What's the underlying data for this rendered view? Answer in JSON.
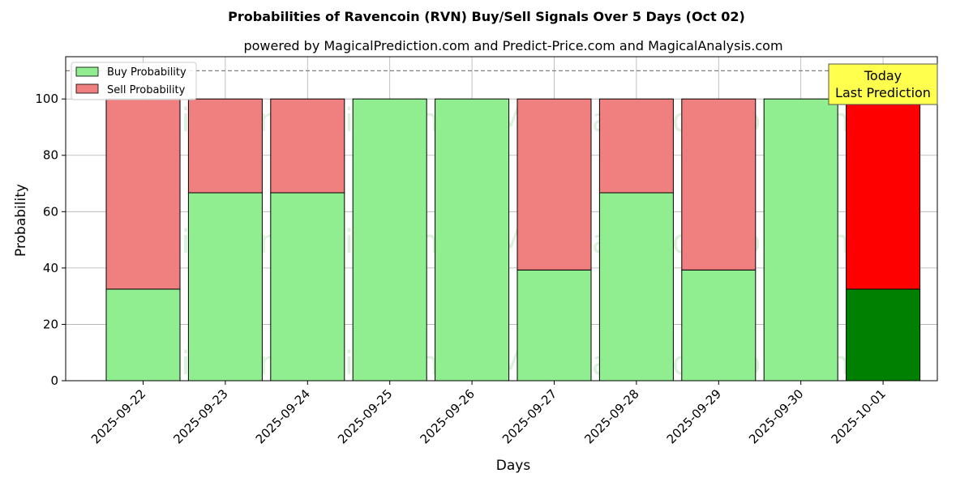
{
  "chart_data": {
    "type": "bar",
    "stacked": true,
    "title": "Probabilities of Ravencoin (RVN) Buy/Sell Signals Over 5 Days (Oct 02)",
    "subtitle": "powered by MagicalPrediction.com and Predict-Price.com and MagicalAnalysis.com",
    "xlabel": "Days",
    "ylabel": "Probability",
    "ylim": [
      0,
      115
    ],
    "yticks": [
      0,
      20,
      40,
      60,
      80,
      100
    ],
    "reference_line": 110,
    "grid": true,
    "legend_position": "top-left",
    "categories": [
      "2025-09-22",
      "2025-09-23",
      "2025-09-24",
      "2025-09-25",
      "2025-09-26",
      "2025-09-27",
      "2025-09-28",
      "2025-09-29",
      "2025-09-30",
      "2025-10-01"
    ],
    "series": [
      {
        "name": "Buy Probability",
        "color": "#90ee90",
        "highlight_color": "#008000",
        "values": [
          32.5,
          66.7,
          66.7,
          100,
          100,
          39.3,
          66.7,
          39.3,
          100,
          32.5
        ]
      },
      {
        "name": "Sell Probability",
        "color": "#f08080",
        "highlight_color": "#ff0000",
        "values": [
          67.5,
          33.3,
          33.3,
          0,
          0,
          60.7,
          33.3,
          60.7,
          0,
          67.5
        ]
      }
    ],
    "highlight_index": 9,
    "annotation": {
      "line1": "Today",
      "line2": "Last Prediction",
      "bg_color": "#ffff4d"
    },
    "watermarks": [
      "MagicalAnalysis.com",
      "MagicalPrediction.com"
    ]
  }
}
